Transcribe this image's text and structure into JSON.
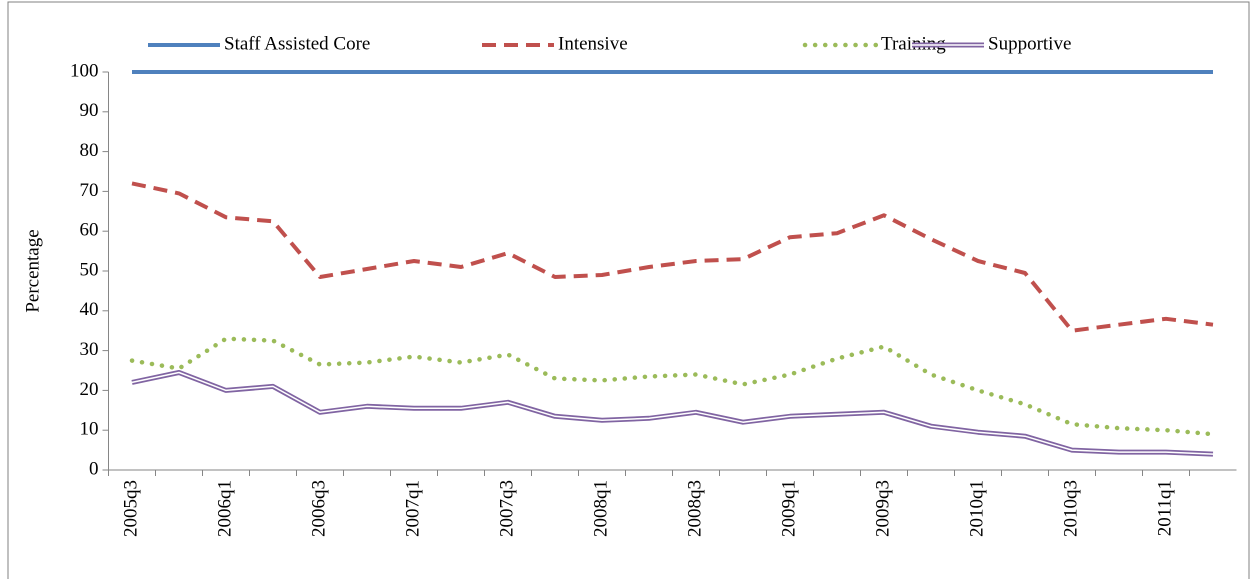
{
  "chart_data": {
    "type": "line",
    "ylabel": "Percentage",
    "categories": [
      "2005q3",
      null,
      "2006q1",
      null,
      "2006q3",
      null,
      "2007q1",
      null,
      "2007q3",
      null,
      "2008q1",
      null,
      "2008q3",
      null,
      "2009q1",
      null,
      "2009q3",
      null,
      "2010q1",
      null,
      "2010q3",
      null,
      "2011q1",
      null
    ],
    "series": [
      {
        "name": "Staff Assisted Core",
        "color": "#4f81bd",
        "style": "solid",
        "values": [
          100,
          100,
          100,
          100,
          100,
          100,
          100,
          100,
          100,
          100,
          100,
          100,
          100,
          100,
          100,
          100,
          100,
          100,
          100,
          100,
          100,
          100,
          100,
          100
        ]
      },
      {
        "name": "Intensive",
        "color": "#c0504d",
        "style": "dashed",
        "values": [
          72,
          69.5,
          63.5,
          62.5,
          48.5,
          50.5,
          52.5,
          51,
          54.5,
          48.5,
          49,
          51,
          52.5,
          53,
          58.5,
          59.5,
          64,
          58,
          52.5,
          49.5,
          35,
          36.5,
          38,
          36.5
        ]
      },
      {
        "name": "Training",
        "color": "#9bbb59",
        "style": "dotted",
        "values": [
          27.5,
          25.5,
          33,
          32.5,
          26.5,
          27,
          28.5,
          27,
          29,
          23,
          22.5,
          23.5,
          24,
          21.5,
          24,
          28,
          31,
          24,
          20,
          16.5,
          11.5,
          10.5,
          10,
          9
        ]
      },
      {
        "name": "Supportive",
        "color": "#8064a2",
        "style": "double",
        "values": [
          22,
          24.5,
          20,
          21,
          14.5,
          16,
          15.5,
          15.5,
          17,
          13.5,
          12.5,
          13,
          14.5,
          12,
          13.5,
          14,
          14.5,
          11,
          9.5,
          8.5,
          5,
          4.5,
          4.5,
          4
        ]
      }
    ],
    "ylim": [
      0,
      100
    ],
    "yticks": [
      0,
      10,
      20,
      30,
      40,
      50,
      60,
      70,
      80,
      90,
      100
    ],
    "legend": "top"
  }
}
